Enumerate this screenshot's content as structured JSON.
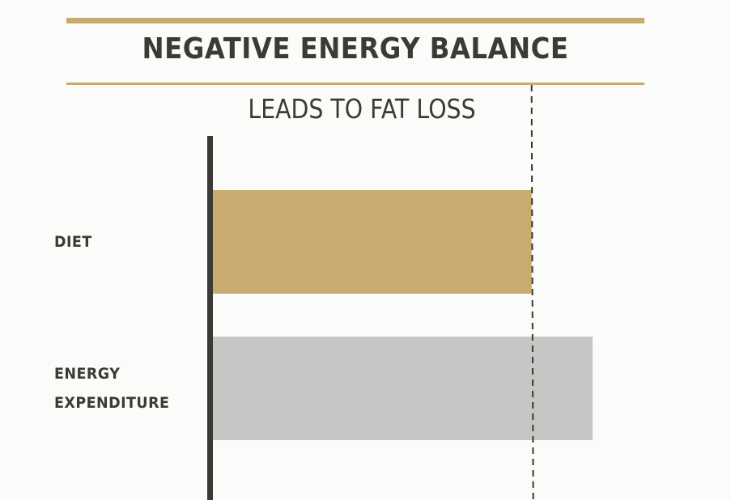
{
  "chart_data": {
    "type": "bar",
    "orientation": "horizontal",
    "title": "NEGATIVE ENERGY BALANCE",
    "subtitle": "LEADS TO FAT LOSS",
    "categories": [
      "DIET",
      "ENERGY\nEXPENDITURE"
    ],
    "values": [
      100,
      119
    ],
    "xlim": [
      0,
      120
    ],
    "reference_line": 100,
    "grid": false,
    "legend": "none",
    "colors": {
      "bars": [
        "#c8ab6e",
        "#c6c6c4"
      ],
      "axis": "#3a3a36",
      "rule": "#c8ab6e",
      "reference": "#3a3a36"
    }
  }
}
